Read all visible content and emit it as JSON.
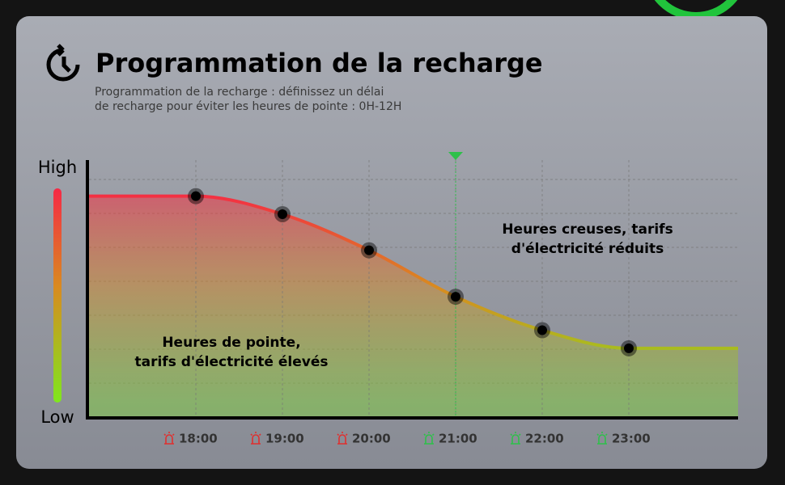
{
  "chart_data": {
    "type": "line",
    "title": "Programmation de la recharge",
    "subtitle": [
      "Programmation de la recharge : définissez un délai",
      "de recharge pour éviter les heures de pointe : 0H-12H"
    ],
    "y_high_label": "High",
    "y_low_label": "Low",
    "categories": [
      "18:00",
      "19:00",
      "20:00",
      "21:00",
      "22:00",
      "23:00"
    ],
    "category_colors": [
      "#e0302f",
      "#e0302f",
      "#e0302f",
      "#2ec04a",
      "#2ec04a",
      "#2ec04a"
    ],
    "values": [
      86,
      79,
      65,
      47,
      34,
      27
    ],
    "ylim": [
      0,
      100
    ],
    "marker_index": 3,
    "annotations": [
      {
        "lines": [
          "Heures creuses, tarifs",
          "d'électricité réduits"
        ]
      },
      {
        "lines": [
          "Heures de pointe,",
          "tarifs d'électricité élevés"
        ]
      }
    ]
  }
}
